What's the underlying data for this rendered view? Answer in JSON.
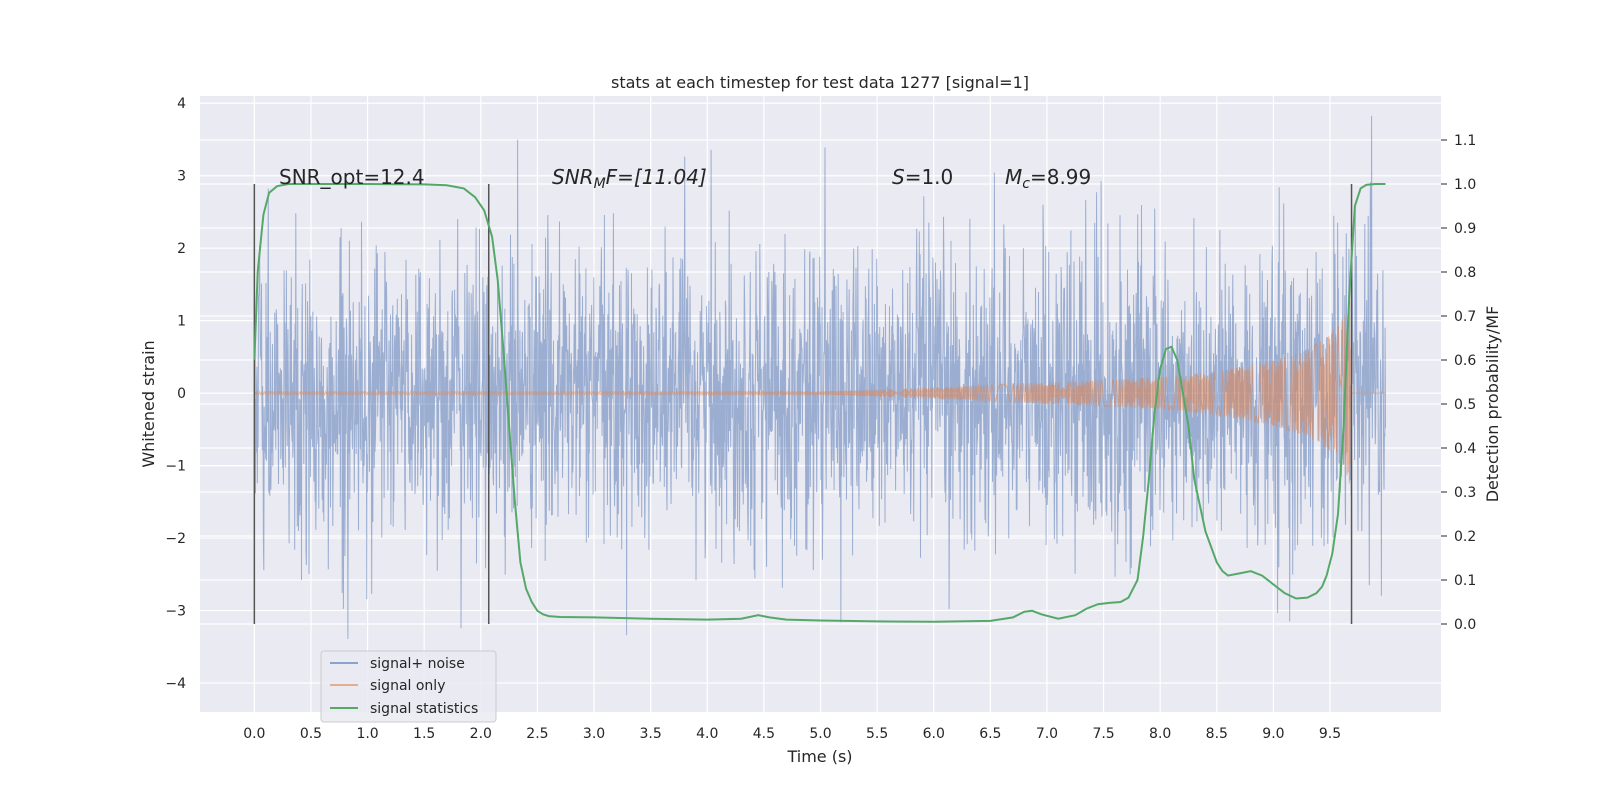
{
  "chart_data": {
    "type": "line",
    "title": "stats at each timestep for test data 1277 [signal=1]",
    "xlabel": "Time (s)",
    "ylabel": "Whitened strain",
    "y2label": "Detection probability/MF",
    "xlim": [
      -0.48,
      10.48
    ],
    "ylim": [
      -4.4,
      4.1
    ],
    "y2lim": [
      -0.2,
      1.2
    ],
    "xticks": [
      0.0,
      0.5,
      1.0,
      1.5,
      2.0,
      2.5,
      3.0,
      3.5,
      4.0,
      4.5,
      5.0,
      5.5,
      6.0,
      6.5,
      7.0,
      7.5,
      8.0,
      8.5,
      9.0,
      9.5
    ],
    "xtick_labels": [
      "0.0",
      "0.5",
      "1.0",
      "1.5",
      "2.0",
      "2.5",
      "3.0",
      "3.5",
      "4.0",
      "4.5",
      "5.0",
      "5.5",
      "6.0",
      "6.5",
      "7.0",
      "7.5",
      "8.0",
      "8.5",
      "9.0",
      "9.5"
    ],
    "yticks": [
      -4,
      -3,
      -2,
      -1,
      0,
      1,
      2,
      3,
      4
    ],
    "ytick_labels": [
      "−4",
      "−3",
      "−2",
      "−1",
      "0",
      "1",
      "2",
      "3",
      "4"
    ],
    "y2ticks": [
      0.0,
      0.1,
      0.2,
      0.3,
      0.4,
      0.5,
      0.6,
      0.7,
      0.8,
      0.9,
      1.0,
      1.1
    ],
    "y2tick_labels": [
      "0.0",
      "0.1",
      "0.2",
      "0.3",
      "0.4",
      "0.5",
      "0.6",
      "0.7",
      "0.8",
      "0.9",
      "1.0",
      "1.1"
    ],
    "grid": true,
    "legend_position": "lower-left",
    "annotations": {
      "snr_opt": "SNR_opt=12.4",
      "snr_mf_sym": "SNR",
      "snr_mf_sub": "M",
      "snr_mf_rest": "F=[11.04]",
      "s_sym": "S",
      "s_rest": "=1.0",
      "mc_sym": "M",
      "mc_sub": "c",
      "mc_rest": "=8.99"
    },
    "vertical_markers": [
      0.0,
      2.07,
      9.69
    ],
    "series": [
      {
        "name": "signal+ noise",
        "color": "#4c72b0",
        "t_start": 0.0,
        "t_end": 9.99,
        "envelope_sigma": 1.0
      },
      {
        "name": "signal only",
        "color": "#dd8452",
        "t_start": 0.0,
        "t_end": 9.99,
        "envelope": {
          "t": [
            0.0,
            5.0,
            6.0,
            7.0,
            8.0,
            8.5,
            9.0,
            9.3,
            9.5,
            9.6,
            9.65,
            9.69,
            9.7
          ],
          "amp": [
            0.02,
            0.02,
            0.08,
            0.15,
            0.22,
            0.3,
            0.45,
            0.6,
            0.8,
            1.0,
            1.2,
            1.4,
            0.0
          ]
        }
      },
      {
        "name": "signal statistics",
        "color": "#55a868",
        "x": [
          0.0,
          0.03,
          0.08,
          0.13,
          0.2,
          0.3,
          0.5,
          1.0,
          1.5,
          1.7,
          1.85,
          1.95,
          2.03,
          2.1,
          2.15,
          2.2,
          2.25,
          2.3,
          2.35,
          2.4,
          2.45,
          2.5,
          2.55,
          2.6,
          2.7,
          3.0,
          3.5,
          4.0,
          4.3,
          4.45,
          4.55,
          4.7,
          5.0,
          5.5,
          6.0,
          6.5,
          6.7,
          6.8,
          6.87,
          6.95,
          7.1,
          7.25,
          7.35,
          7.45,
          7.55,
          7.65,
          7.72,
          7.8,
          7.85,
          7.9,
          7.95,
          8.0,
          8.05,
          8.1,
          8.15,
          8.25,
          8.3,
          8.4,
          8.5,
          8.55,
          8.6,
          8.7,
          8.8,
          8.9,
          9.0,
          9.1,
          9.2,
          9.3,
          9.38,
          9.43,
          9.47,
          9.52,
          9.57,
          9.62,
          9.67,
          9.72,
          9.77,
          9.82,
          9.9,
          9.99
        ],
        "values": [
          0.6,
          0.8,
          0.93,
          0.98,
          0.995,
          1.0,
          1.0,
          1.0,
          0.999,
          0.997,
          0.99,
          0.97,
          0.94,
          0.88,
          0.78,
          0.62,
          0.45,
          0.28,
          0.14,
          0.08,
          0.05,
          0.03,
          0.022,
          0.018,
          0.016,
          0.015,
          0.012,
          0.01,
          0.012,
          0.02,
          0.015,
          0.01,
          0.008,
          0.006,
          0.005,
          0.007,
          0.015,
          0.028,
          0.03,
          0.022,
          0.012,
          0.02,
          0.035,
          0.045,
          0.048,
          0.05,
          0.06,
          0.1,
          0.2,
          0.33,
          0.48,
          0.58,
          0.625,
          0.63,
          0.6,
          0.45,
          0.33,
          0.21,
          0.14,
          0.12,
          0.11,
          0.115,
          0.12,
          0.11,
          0.09,
          0.07,
          0.058,
          0.06,
          0.07,
          0.085,
          0.11,
          0.16,
          0.25,
          0.45,
          0.75,
          0.95,
          0.99,
          0.998,
          1.0,
          1.0
        ]
      }
    ]
  }
}
